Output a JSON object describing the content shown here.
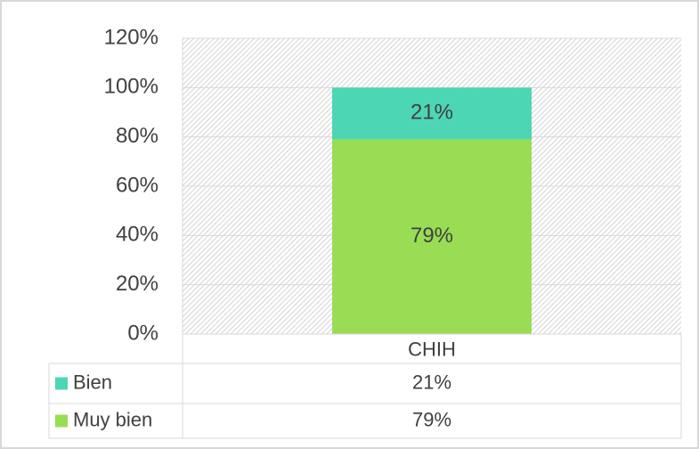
{
  "chart_data": {
    "type": "stacked-bar",
    "categories": [
      "CHIH"
    ],
    "series": [
      {
        "name": "Bien",
        "color": "#4dd6b4",
        "values": [
          21
        ],
        "value_labels": [
          "21%"
        ]
      },
      {
        "name": "Muy bien",
        "color": "#99dd55",
        "values": [
          79
        ],
        "value_labels": [
          "79%"
        ]
      }
    ],
    "ylim": [
      0,
      120
    ],
    "yticks": [
      {
        "value": 0,
        "label": "0%"
      },
      {
        "value": 20,
        "label": "20%"
      },
      {
        "value": 40,
        "label": "40%"
      },
      {
        "value": 60,
        "label": "60%"
      },
      {
        "value": 80,
        "label": "80%"
      },
      {
        "value": 100,
        "label": "100%"
      },
      {
        "value": 120,
        "label": "120%"
      }
    ],
    "grid": true,
    "data_table": true
  }
}
